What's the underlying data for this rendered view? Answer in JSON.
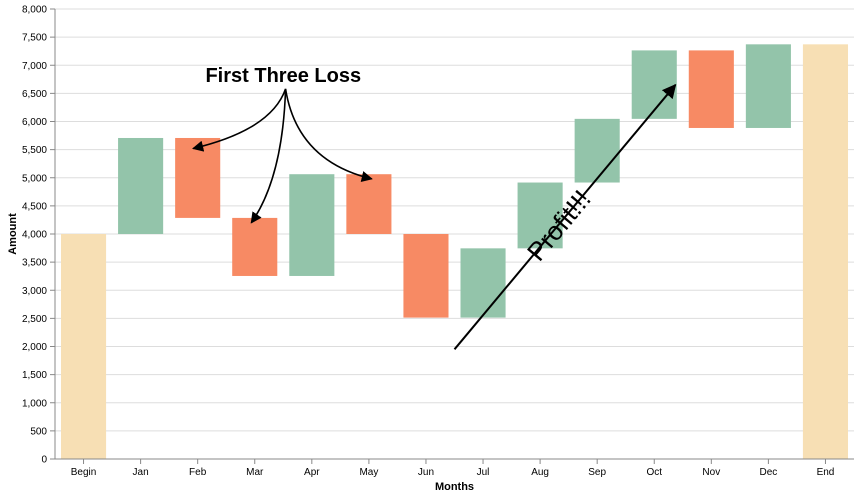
{
  "chart_data": {
    "type": "bar",
    "subtype": "waterfall",
    "xlabel": "Months",
    "ylabel": "Amount",
    "ylim": [
      0,
      8000
    ],
    "y_ticks": [
      0,
      500,
      1000,
      1500,
      2000,
      2500,
      3000,
      3500,
      4000,
      4500,
      5000,
      5500,
      6000,
      6500,
      7000,
      7500,
      8000
    ],
    "y_tick_labels": [
      "0",
      "500",
      "1,000",
      "1,500",
      "2,000",
      "2,500",
      "3,000",
      "3,500",
      "4,000",
      "4,500",
      "5,000",
      "5,500",
      "6,000",
      "6,500",
      "7,000",
      "7,500",
      "8,000"
    ],
    "grid": true,
    "categories": [
      "Begin",
      "Jan",
      "Feb",
      "Mar",
      "Apr",
      "May",
      "Jun",
      "Jul",
      "Aug",
      "Sep",
      "Oct",
      "Nov",
      "Dec",
      "End"
    ],
    "bars": [
      {
        "label": "Begin",
        "start": 0,
        "end": 4000,
        "kind": "total"
      },
      {
        "label": "Jan",
        "start": 4000,
        "end": 5707,
        "kind": "gain"
      },
      {
        "label": "Feb",
        "start": 5707,
        "end": 4286,
        "kind": "loss"
      },
      {
        "label": "Mar",
        "start": 4286,
        "end": 3254,
        "kind": "loss"
      },
      {
        "label": "Apr",
        "start": 3254,
        "end": 5063,
        "kind": "gain"
      },
      {
        "label": "May",
        "start": 5063,
        "end": 4000,
        "kind": "loss"
      },
      {
        "label": "Jun",
        "start": 4000,
        "end": 2514,
        "kind": "loss"
      },
      {
        "label": "Jul",
        "start": 2514,
        "end": 3745,
        "kind": "gain"
      },
      {
        "label": "Aug",
        "start": 3745,
        "end": 4915,
        "kind": "gain"
      },
      {
        "label": "Sep",
        "start": 4915,
        "end": 6047,
        "kind": "gain"
      },
      {
        "label": "Oct",
        "start": 6047,
        "end": 7264,
        "kind": "gain"
      },
      {
        "label": "Nov",
        "start": 7264,
        "end": 5885,
        "kind": "loss"
      },
      {
        "label": "Dec",
        "start": 5885,
        "end": 7372,
        "kind": "gain"
      },
      {
        "label": "End",
        "start": 0,
        "end": 7372,
        "kind": "total"
      }
    ],
    "colors": {
      "total": "#f7dfb4",
      "gain": "#93c4aa",
      "loss": "#f78a64",
      "grid": "#dddddd",
      "axis": "#888888"
    },
    "annotations": [
      {
        "text": "First Three Loss",
        "kind": "title-callout",
        "target_categories": [
          "Feb",
          "Mar",
          "May"
        ]
      },
      {
        "text": "Profit!!!",
        "kind": "trend-arrow",
        "from": {
          "category": "Jun",
          "value": 1950
        },
        "to": {
          "category": "Nov",
          "value": 6650
        }
      }
    ]
  }
}
